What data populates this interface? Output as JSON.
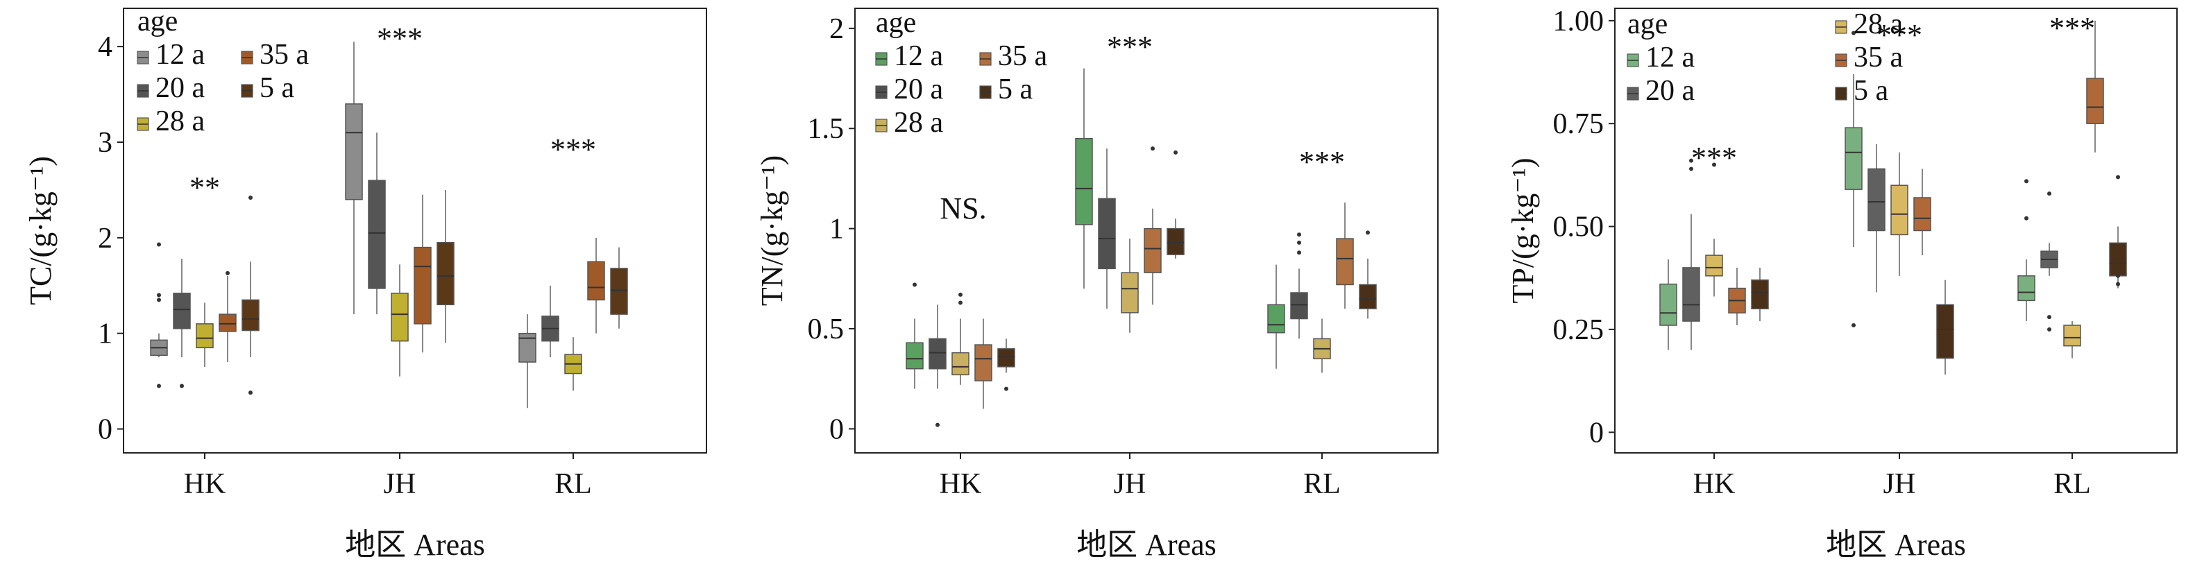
{
  "chart_data": [
    {
      "type": "box",
      "ylabel": "TC/(g·kg⁻¹)",
      "xlabel": "地区 Areas",
      "ylim": [
        -0.25,
        4.4
      ],
      "yticks": [
        0,
        1,
        2,
        3,
        4
      ],
      "categories": [
        "HK",
        "JH",
        "RL"
      ],
      "legend": {
        "title": "age",
        "entries": [
          "12 a",
          "35 a",
          "20 a",
          "5 a",
          "28 a"
        ]
      },
      "significance": [
        "**",
        "***",
        "***"
      ],
      "series": [
        {
          "name": "12 a",
          "color": "#8c8c8c",
          "boxes": [
            {
              "cat": "HK",
              "whislo": 0.75,
              "q1": 0.77,
              "med": 0.85,
              "q3": 0.93,
              "whishi": 1.0,
              "fliers": [
                0.45,
                1.35,
                1.4,
                1.93
              ]
            },
            {
              "cat": "JH",
              "whislo": 1.2,
              "q1": 2.4,
              "med": 3.1,
              "q3": 3.4,
              "whishi": 4.05,
              "fliers": []
            },
            {
              "cat": "RL",
              "whislo": 0.22,
              "q1": 0.7,
              "med": 0.95,
              "q3": 1.0,
              "whishi": 1.2,
              "fliers": []
            }
          ]
        },
        {
          "name": "20 a",
          "color": "#555555",
          "boxes": [
            {
              "cat": "HK",
              "whislo": 0.75,
              "q1": 1.05,
              "med": 1.25,
              "q3": 1.42,
              "whishi": 1.78,
              "fliers": [
                0.45
              ]
            },
            {
              "cat": "JH",
              "whislo": 1.2,
              "q1": 1.47,
              "med": 2.05,
              "q3": 2.6,
              "whishi": 3.1,
              "fliers": []
            },
            {
              "cat": "RL",
              "whislo": 0.75,
              "q1": 0.92,
              "med": 1.05,
              "q3": 1.18,
              "whishi": 1.5,
              "fliers": []
            }
          ]
        },
        {
          "name": "28 a",
          "color": "#c0b030",
          "boxes": [
            {
              "cat": "HK",
              "whislo": 0.65,
              "q1": 0.85,
              "med": 0.95,
              "q3": 1.1,
              "whishi": 1.32,
              "fliers": []
            },
            {
              "cat": "JH",
              "whislo": 0.55,
              "q1": 0.92,
              "med": 1.2,
              "q3": 1.42,
              "whishi": 1.72,
              "fliers": []
            },
            {
              "cat": "RL",
              "whislo": 0.4,
              "q1": 0.58,
              "med": 0.68,
              "q3": 0.78,
              "whishi": 0.96,
              "fliers": []
            }
          ]
        },
        {
          "name": "35 a",
          "color": "#a05a28",
          "boxes": [
            {
              "cat": "HK",
              "whislo": 0.7,
              "q1": 1.02,
              "med": 1.1,
              "q3": 1.2,
              "whishi": 1.6,
              "fliers": [
                1.63
              ]
            },
            {
              "cat": "JH",
              "whislo": 0.8,
              "q1": 1.1,
              "med": 1.7,
              "q3": 1.9,
              "whishi": 2.45,
              "fliers": []
            },
            {
              "cat": "RL",
              "whislo": 1.0,
              "q1": 1.35,
              "med": 1.48,
              "q3": 1.75,
              "whishi": 2.0,
              "fliers": []
            }
          ]
        },
        {
          "name": "5 a",
          "color": "#5a3818",
          "boxes": [
            {
              "cat": "HK",
              "whislo": 0.75,
              "q1": 1.03,
              "med": 1.15,
              "q3": 1.35,
              "whishi": 1.75,
              "fliers": [
                0.38,
                2.42
              ]
            },
            {
              "cat": "JH",
              "whislo": 0.9,
              "q1": 1.3,
              "med": 1.6,
              "q3": 1.95,
              "whishi": 2.5,
              "fliers": []
            },
            {
              "cat": "RL",
              "whislo": 1.05,
              "q1": 1.2,
              "med": 1.45,
              "q3": 1.68,
              "whishi": 1.9,
              "fliers": []
            }
          ]
        }
      ]
    },
    {
      "type": "box",
      "ylabel": "TN/(g·kg⁻¹)",
      "xlabel": "地区 Areas",
      "ylim": [
        -0.12,
        2.1
      ],
      "yticks": [
        0,
        0.5,
        1.0,
        1.5,
        2.0
      ],
      "categories": [
        "HK",
        "JH",
        "RL"
      ],
      "legend": {
        "title": "age",
        "entries": [
          "12 a",
          "35 a",
          "20 a",
          "5 a",
          "28 a"
        ]
      },
      "significance": [
        "NS.",
        "***",
        "***"
      ],
      "series": [
        {
          "name": "12 a",
          "color": "#5aa060",
          "boxes": [
            {
              "cat": "HK",
              "whislo": 0.2,
              "q1": 0.3,
              "med": 0.35,
              "q3": 0.43,
              "whishi": 0.55,
              "fliers": [
                0.72
              ]
            },
            {
              "cat": "JH",
              "whislo": 0.7,
              "q1": 1.02,
              "med": 1.2,
              "q3": 1.45,
              "whishi": 1.8,
              "fliers": []
            },
            {
              "cat": "RL",
              "whislo": 0.3,
              "q1": 0.48,
              "med": 0.52,
              "q3": 0.62,
              "whishi": 0.82,
              "fliers": []
            }
          ]
        },
        {
          "name": "20 a",
          "color": "#505050",
          "boxes": [
            {
              "cat": "HK",
              "whislo": 0.2,
              "q1": 0.3,
              "med": 0.38,
              "q3": 0.45,
              "whishi": 0.62,
              "fliers": [
                0.02
              ]
            },
            {
              "cat": "JH",
              "whislo": 0.6,
              "q1": 0.8,
              "med": 0.95,
              "q3": 1.15,
              "whishi": 1.4,
              "fliers": []
            },
            {
              "cat": "RL",
              "whislo": 0.45,
              "q1": 0.55,
              "med": 0.62,
              "q3": 0.68,
              "whishi": 0.8,
              "fliers": [
                0.88,
                0.93,
                0.97
              ]
            }
          ]
        },
        {
          "name": "28 a",
          "color": "#c8b060",
          "boxes": [
            {
              "cat": "HK",
              "whislo": 0.22,
              "q1": 0.27,
              "med": 0.31,
              "q3": 0.38,
              "whishi": 0.55,
              "fliers": [
                0.63,
                0.67
              ]
            },
            {
              "cat": "JH",
              "whislo": 0.48,
              "q1": 0.58,
              "med": 0.7,
              "q3": 0.78,
              "whishi": 0.95,
              "fliers": []
            },
            {
              "cat": "RL",
              "whislo": 0.28,
              "q1": 0.35,
              "med": 0.4,
              "q3": 0.45,
              "whishi": 0.55,
              "fliers": []
            }
          ]
        },
        {
          "name": "35 a",
          "color": "#b07040",
          "boxes": [
            {
              "cat": "HK",
              "whislo": 0.1,
              "q1": 0.24,
              "med": 0.35,
              "q3": 0.42,
              "whishi": 0.55,
              "fliers": []
            },
            {
              "cat": "JH",
              "whislo": 0.62,
              "q1": 0.78,
              "med": 0.9,
              "q3": 1.0,
              "whishi": 1.1,
              "fliers": [
                1.4
              ]
            },
            {
              "cat": "RL",
              "whislo": 0.6,
              "q1": 0.72,
              "med": 0.85,
              "q3": 0.95,
              "whishi": 1.13,
              "fliers": []
            }
          ]
        },
        {
          "name": "5 a",
          "color": "#4a3018",
          "boxes": [
            {
              "cat": "HK",
              "whislo": 0.28,
              "q1": 0.31,
              "med": 0.36,
              "q3": 0.4,
              "whishi": 0.45,
              "fliers": [
                0.2
              ]
            },
            {
              "cat": "JH",
              "whislo": 0.85,
              "q1": 0.87,
              "med": 0.93,
              "q3": 1.0,
              "whishi": 1.05,
              "fliers": [
                1.38
              ]
            },
            {
              "cat": "RL",
              "whislo": 0.55,
              "q1": 0.6,
              "med": 0.65,
              "q3": 0.72,
              "whishi": 0.85,
              "fliers": [
                0.98
              ]
            }
          ]
        }
      ]
    },
    {
      "type": "box",
      "ylabel": "TP/(g·kg⁻¹)",
      "xlabel": "地区 Areas",
      "ylim": [
        -0.05,
        1.03
      ],
      "yticks": [
        0,
        0.25,
        0.5,
        0.75,
        1.0
      ],
      "ytick_labels": [
        "0",
        "0.25",
        "0.50",
        "0.75",
        "1.00"
      ],
      "categories": [
        "HK",
        "JH",
        "RL"
      ],
      "legend": {
        "title": "age",
        "entries": [
          "28 a",
          "12 a",
          "35 a",
          "20 a",
          "5 a"
        ]
      },
      "significance": [
        "***",
        "***",
        "***"
      ],
      "series": [
        {
          "name": "12 a",
          "color": "#7ab080",
          "boxes": [
            {
              "cat": "HK",
              "whislo": 0.2,
              "q1": 0.26,
              "med": 0.29,
              "q3": 0.36,
              "whishi": 0.42,
              "fliers": []
            },
            {
              "cat": "JH",
              "whislo": 0.45,
              "q1": 0.59,
              "med": 0.68,
              "q3": 0.74,
              "whishi": 0.87,
              "fliers": [
                0.26,
                0.97
              ]
            },
            {
              "cat": "RL",
              "whislo": 0.27,
              "q1": 0.32,
              "med": 0.34,
              "q3": 0.38,
              "whishi": 0.42,
              "fliers": [
                0.52,
                0.61
              ]
            }
          ]
        },
        {
          "name": "20 a",
          "color": "#606060",
          "boxes": [
            {
              "cat": "HK",
              "whislo": 0.2,
              "q1": 0.27,
              "med": 0.31,
              "q3": 0.4,
              "whishi": 0.53,
              "fliers": [
                0.64,
                0.66
              ]
            },
            {
              "cat": "JH",
              "whislo": 0.34,
              "q1": 0.49,
              "med": 0.56,
              "q3": 0.64,
              "whishi": 0.7,
              "fliers": []
            },
            {
              "cat": "RL",
              "whislo": 0.38,
              "q1": 0.4,
              "med": 0.42,
              "q3": 0.44,
              "whishi": 0.46,
              "fliers": [
                0.25,
                0.28,
                0.58
              ]
            }
          ]
        },
        {
          "name": "28 a",
          "color": "#d8b860",
          "boxes": [
            {
              "cat": "HK",
              "whislo": 0.33,
              "q1": 0.38,
              "med": 0.4,
              "q3": 0.43,
              "whishi": 0.47,
              "fliers": [
                0.65
              ]
            },
            {
              "cat": "JH",
              "whislo": 0.38,
              "q1": 0.48,
              "med": 0.53,
              "q3": 0.6,
              "whishi": 0.68,
              "fliers": []
            },
            {
              "cat": "RL",
              "whislo": 0.18,
              "q1": 0.21,
              "med": 0.23,
              "q3": 0.26,
              "whishi": 0.27,
              "fliers": []
            }
          ]
        },
        {
          "name": "35 a",
          "color": "#b06838",
          "boxes": [
            {
              "cat": "HK",
              "whislo": 0.26,
              "q1": 0.29,
              "med": 0.32,
              "q3": 0.35,
              "whishi": 0.4,
              "fliers": []
            },
            {
              "cat": "JH",
              "whislo": 0.43,
              "q1": 0.49,
              "med": 0.52,
              "q3": 0.57,
              "whishi": 0.64,
              "fliers": []
            },
            {
              "cat": "RL",
              "whislo": 0.68,
              "q1": 0.75,
              "med": 0.79,
              "q3": 0.86,
              "whishi": 1.0,
              "fliers": []
            }
          ]
        },
        {
          "name": "5 a",
          "color": "#4a3018",
          "boxes": [
            {
              "cat": "HK",
              "whislo": 0.27,
              "q1": 0.3,
              "med": 0.34,
              "q3": 0.37,
              "whishi": 0.4,
              "fliers": []
            },
            {
              "cat": "JH",
              "whislo": 0.14,
              "q1": 0.18,
              "med": 0.25,
              "q3": 0.31,
              "whishi": 0.37,
              "fliers": []
            },
            {
              "cat": "RL",
              "whislo": 0.35,
              "q1": 0.38,
              "med": 0.41,
              "q3": 0.46,
              "whishi": 0.5,
              "fliers": [
                0.36,
                0.38,
                0.62
              ]
            }
          ]
        }
      ]
    }
  ]
}
